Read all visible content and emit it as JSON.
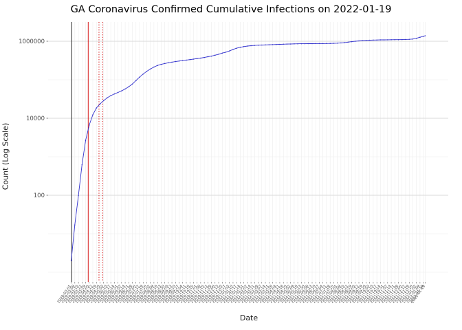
{
  "chart_data": {
    "type": "line",
    "title": "GA Coronavirus Confirmed Cumulative Infections on 2022-01-19",
    "xlabel": "Date",
    "ylabel": "Count (Log Scale)",
    "legend": "none",
    "grid": true,
    "y_scale": "log10",
    "ylim_log10": [
      -0.25,
      6.5
    ],
    "x_pad_days": 45,
    "y_ticks": [
      {
        "value": 100,
        "label": "100"
      },
      {
        "value": 10000,
        "label": "10000"
      },
      {
        "value": 1000000,
        "label": "1000000"
      }
    ],
    "y_minor_decades": [
      0,
      1,
      3,
      5
    ],
    "line_color": "#3232cd",
    "grid_major_color": "#d9d9d9",
    "grid_minor_color": "#ececec",
    "axis_text_color": "#4d4d4d",
    "series_name": "confirmed-cumulative-infections",
    "dates": [
      "2020-03-01",
      "2020-03-08",
      "2020-03-15",
      "2020-03-22",
      "2020-03-29",
      "2020-04-05",
      "2020-04-12",
      "2020-04-19",
      "2020-04-26",
      "2020-05-03",
      "2020-05-10",
      "2020-05-17",
      "2020-05-24",
      "2020-05-31",
      "2020-06-07",
      "2020-06-14",
      "2020-06-21",
      "2020-06-28",
      "2020-07-05",
      "2020-07-12",
      "2020-07-19",
      "2020-07-26",
      "2020-08-02",
      "2020-08-09",
      "2020-08-16",
      "2020-08-23",
      "2020-08-30",
      "2020-09-06",
      "2020-09-13",
      "2020-09-20",
      "2020-09-27",
      "2020-10-04",
      "2020-10-11",
      "2020-10-18",
      "2020-10-25",
      "2020-11-01",
      "2020-11-08",
      "2020-11-15",
      "2020-11-22",
      "2020-11-29",
      "2020-12-06",
      "2020-12-13",
      "2020-12-20",
      "2020-12-27",
      "2021-01-03",
      "2021-01-10",
      "2021-01-17",
      "2021-01-24",
      "2021-01-31",
      "2021-02-07",
      "2021-02-14",
      "2021-02-21",
      "2021-02-28",
      "2021-03-07",
      "2021-03-14",
      "2021-03-21",
      "2021-03-28",
      "2021-04-04",
      "2021-04-11",
      "2021-04-18",
      "2021-04-25",
      "2021-05-02",
      "2021-05-09",
      "2021-05-16",
      "2021-05-23",
      "2021-05-30",
      "2021-06-06",
      "2021-06-13",
      "2021-06-20",
      "2021-06-27",
      "2021-07-04",
      "2021-07-11",
      "2021-07-18",
      "2021-07-25",
      "2021-08-01",
      "2021-08-08",
      "2021-08-15",
      "2021-08-22",
      "2021-08-29",
      "2021-09-05",
      "2021-09-12",
      "2021-09-19",
      "2021-09-26",
      "2021-10-03",
      "2021-10-10",
      "2021-10-17",
      "2021-10-24",
      "2021-10-31",
      "2021-11-07",
      "2021-11-14",
      "2021-11-21",
      "2021-11-28",
      "2021-12-05",
      "2021-12-12",
      "2021-12-19",
      "2021-12-26",
      "2022-01-02",
      "2022-01-09",
      "2022-01-16",
      "2022-01-19"
    ],
    "values": [
      2,
      17,
      99,
      620,
      2651,
      6647,
      12261,
      18489,
      23481,
      28671,
      33927,
      38624,
      42838,
      46722,
      51309,
      57681,
      65928,
      77210,
      95516,
      116926,
      140716,
      165188,
      190012,
      214332,
      235168,
      251420,
      264004,
      276004,
      286153,
      296833,
      306482,
      315302,
      324303,
      334002,
      343750,
      354327,
      365839,
      379704,
      396734,
      411783,
      433353,
      460473,
      492354,
      520995,
      559172,
      612612,
      659909,
      697512,
      726320,
      749491,
      766352,
      779406,
      789488,
      798089,
      805431,
      812423,
      819063,
      825177,
      832255,
      839078,
      844869,
      849784,
      854272,
      857942,
      860870,
      863334,
      865285,
      866841,
      868224,
      869616,
      871209,
      873349,
      876877,
      883026,
      892957,
      907244,
      925465,
      948357,
      973814,
      999001,
      1021550,
      1040195,
      1054359,
      1064769,
      1072621,
      1078711,
      1083591,
      1087581,
      1091053,
      1094493,
      1098133,
      1101411,
      1105606,
      1111210,
      1120497,
      1142945,
      1194655,
      1271096,
      1352092,
      1392149
    ],
    "reference_lines": [
      {
        "date": "2020-03-02",
        "color": "#1a1a1a",
        "style": "solid"
      },
      {
        "date": "2020-04-03",
        "color": "#d40000",
        "style": "solid"
      },
      {
        "date": "2020-04-24",
        "color": "#d40000",
        "style": "dotted"
      },
      {
        "date": "2020-05-01",
        "color": "#d40000",
        "style": "dotted"
      }
    ]
  }
}
